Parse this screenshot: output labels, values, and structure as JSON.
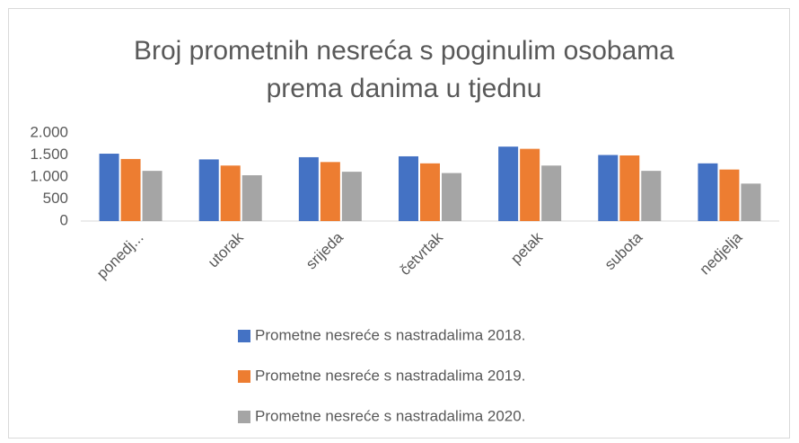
{
  "chart_data": {
    "type": "bar",
    "title": [
      "Broj prometnih nesreća s poginulim osobama",
      "prema danima u tjednu"
    ],
    "categories": [
      "ponedj...",
      "utorak",
      "srijeda",
      "četvrtak",
      "petak",
      "subota",
      "nedjelja"
    ],
    "series": [
      {
        "name": "Prometne nesreće s nastradalima 2018.",
        "color": "#4472c4",
        "values": [
          1530,
          1400,
          1450,
          1470,
          1690,
          1500,
          1310
        ]
      },
      {
        "name": "Prometne nesreće s nastradalima 2019.",
        "color": "#ed7d31",
        "values": [
          1410,
          1260,
          1340,
          1310,
          1640,
          1490,
          1170
        ]
      },
      {
        "name": "Prometne nesreće s nastradalima 2020.",
        "color": "#a5a5a5",
        "values": [
          1140,
          1040,
          1120,
          1090,
          1260,
          1140,
          850
        ]
      }
    ],
    "ylim": [
      0,
      2000
    ],
    "yticks": [
      0,
      {
        "value": 500,
        "label": "500"
      },
      {
        "value": 1000,
        "label": "1.000"
      },
      {
        "value": 1500,
        "label": "1.500"
      },
      {
        "value": 2000,
        "label": "2.000"
      }
    ],
    "grid": false
  }
}
